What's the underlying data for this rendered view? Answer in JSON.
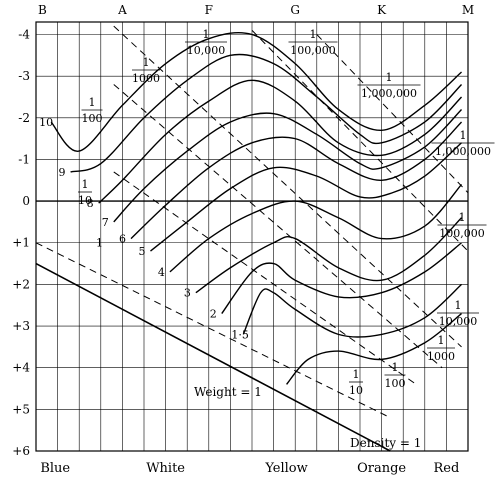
{
  "chart_data": {
    "type": "line",
    "title": "",
    "xlabel": "",
    "ylabel": "",
    "top_letters": [
      "B",
      "A",
      "F",
      "G",
      "K",
      "M"
    ],
    "color_labels": [
      "Blue",
      "White",
      "Yellow",
      "Orange",
      "Red"
    ],
    "y_ticks": [
      "-4",
      "-3",
      "-2",
      "-1",
      "0",
      "+1",
      "+2",
      "+3",
      "+4",
      "+5",
      "+6"
    ],
    "ylim": [
      -4.3,
      6.0
    ],
    "xlim": [
      0,
      20
    ],
    "grid": true,
    "weight_label": "Weight = 1",
    "density_label": "Density = 1",
    "weight_line": [
      [
        0,
        1.5
      ],
      [
        16.4,
        6.0
      ]
    ],
    "density_lines": [
      {
        "label": "1",
        "points": [
          [
            0,
            1.0
          ],
          [
            16.4,
            5.2
          ]
        ]
      },
      {
        "label": "1/10",
        "points": [
          [
            3.6,
            -0.7
          ],
          [
            17.6,
            4.4
          ]
        ]
      },
      {
        "label": "1/100",
        "points": [
          [
            3.6,
            -2.8
          ],
          [
            18.8,
            4.0
          ]
        ]
      },
      {
        "label": "1/1000",
        "points": [
          [
            3.6,
            -4.2
          ],
          [
            19.7,
            3.5
          ]
        ]
      },
      {
        "label": "1/10,000",
        "points": [
          [
            10.0,
            -4.1
          ],
          [
            20.0,
            1.2
          ]
        ]
      },
      {
        "label": "1/100,000",
        "points": [
          [
            13.0,
            -4.0
          ],
          [
            20.0,
            -0.2
          ]
        ]
      }
    ],
    "curves": [
      {
        "label": "10",
        "points": [
          [
            0.7,
            -1.9
          ],
          [
            2,
            -1.2
          ],
          [
            4,
            -2.3
          ],
          [
            6,
            -3.3
          ],
          [
            8,
            -3.9
          ],
          [
            10,
            -4.0
          ],
          [
            12,
            -3.3
          ],
          [
            14,
            -2.2
          ],
          [
            16,
            -1.7
          ],
          [
            18,
            -2.3
          ],
          [
            19.7,
            -3.1
          ]
        ]
      },
      {
        "label": "9",
        "points": [
          [
            1.6,
            -0.7
          ],
          [
            3,
            -0.9
          ],
          [
            5,
            -2.0
          ],
          [
            7,
            -2.9
          ],
          [
            9,
            -3.5
          ],
          [
            11,
            -3.3
          ],
          [
            13,
            -2.5
          ],
          [
            15,
            -1.6
          ],
          [
            16,
            -1.4
          ],
          [
            18,
            -1.9
          ],
          [
            19.7,
            -2.8
          ]
        ]
      },
      {
        "label": "8",
        "points": [
          [
            2.9,
            0.05
          ],
          [
            4,
            -0.5
          ],
          [
            6,
            -1.6
          ],
          [
            8,
            -2.4
          ],
          [
            10,
            -2.9
          ],
          [
            12,
            -2.4
          ],
          [
            14,
            -1.4
          ],
          [
            16,
            -1.1
          ],
          [
            18,
            -1.6
          ],
          [
            19.7,
            -2.5
          ]
        ]
      },
      {
        "label": "7",
        "points": [
          [
            3.6,
            0.5
          ],
          [
            5,
            -0.3
          ],
          [
            7,
            -1.2
          ],
          [
            9,
            -1.9
          ],
          [
            11,
            -2.1
          ],
          [
            13,
            -1.6
          ],
          [
            15,
            -0.9
          ],
          [
            16,
            -0.8
          ],
          [
            18,
            -1.3
          ],
          [
            19.7,
            -2.2
          ]
        ]
      },
      {
        "label": "6",
        "points": [
          [
            4.4,
            0.9
          ],
          [
            6,
            0.1
          ],
          [
            8,
            -0.8
          ],
          [
            10,
            -1.4
          ],
          [
            12,
            -1.5
          ],
          [
            14,
            -0.9
          ],
          [
            16,
            -0.5
          ],
          [
            18,
            -1.0
          ],
          [
            19.7,
            -1.9
          ]
        ]
      },
      {
        "label": "5",
        "points": [
          [
            5.3,
            1.2
          ],
          [
            7,
            0.5
          ],
          [
            9,
            -0.3
          ],
          [
            11,
            -0.8
          ],
          [
            13,
            -0.6
          ],
          [
            15,
            -0.1
          ],
          [
            16.5,
            -0.2
          ],
          [
            18,
            -0.6
          ],
          [
            19.7,
            -1.4
          ]
        ]
      },
      {
        "label": "4",
        "points": [
          [
            6.2,
            1.7
          ],
          [
            8,
            0.9
          ],
          [
            10,
            0.3
          ],
          [
            12,
            0.0
          ],
          [
            14,
            0.4
          ],
          [
            16,
            0.9
          ],
          [
            18,
            0.6
          ],
          [
            19.7,
            -0.4
          ]
        ]
      },
      {
        "label": "3",
        "points": [
          [
            7.4,
            2.2
          ],
          [
            9,
            1.6
          ],
          [
            11,
            1.0
          ],
          [
            12,
            0.9
          ],
          [
            14,
            1.6
          ],
          [
            16,
            1.9
          ],
          [
            18,
            1.3
          ],
          [
            19.7,
            0.4
          ]
        ]
      },
      {
        "label": "2",
        "points": [
          [
            8.6,
            2.7
          ],
          [
            10,
            1.7
          ],
          [
            11,
            1.5
          ],
          [
            12,
            1.9
          ],
          [
            14,
            2.3
          ],
          [
            16,
            2.2
          ],
          [
            18,
            1.7
          ],
          [
            19.7,
            1.0
          ]
        ]
      },
      {
        "label": "1·5",
        "points": [
          [
            9.6,
            3.2
          ],
          [
            10.4,
            2.2
          ],
          [
            11,
            2.2
          ],
          [
            12,
            2.6
          ],
          [
            14,
            3.2
          ],
          [
            16,
            3.2
          ],
          [
            18,
            2.8
          ],
          [
            19.7,
            2.0
          ]
        ]
      },
      {
        "label": "",
        "points": [
          [
            11.6,
            4.4
          ],
          [
            12.6,
            3.8
          ],
          [
            14,
            3.6
          ],
          [
            16,
            3.8
          ],
          [
            18,
            3.4
          ],
          [
            19.7,
            2.7
          ]
        ]
      }
    ],
    "annotations": [
      "1/10,000",
      "1/100,000",
      "1/1000",
      "1/100",
      "1/10",
      "1/1,000,000",
      "1/100,000",
      "1/10,000",
      "1/1000",
      "1/100",
      "1/10",
      "1/1,000,000"
    ]
  }
}
